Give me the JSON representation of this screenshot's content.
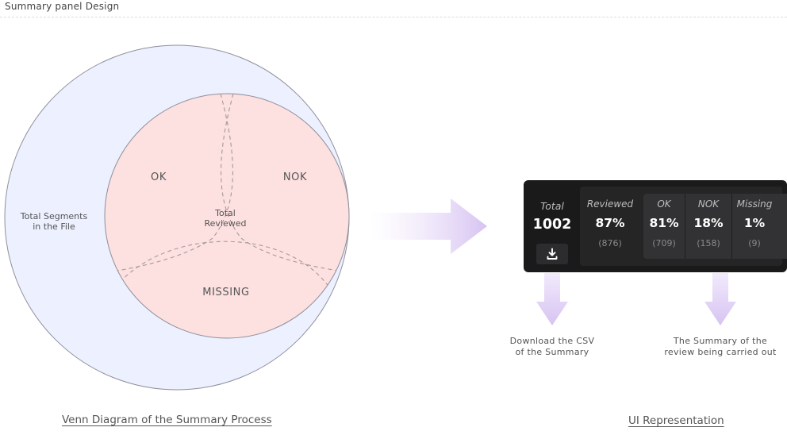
{
  "page_title": "Summary panel Design",
  "venn": {
    "outer_label": "Total Segments\nin the File",
    "ok_label": "OK",
    "nok_label": "NOK",
    "missing_label": "MISSING",
    "center_label": "Total\nReviewed",
    "caption": "Venn Diagram of the Summary Process",
    "colors": {
      "outer": "#ecf0ff",
      "inner": "#fde0e0",
      "outline": "#8f8f9a",
      "dashes": "#a59a9a"
    }
  },
  "panel": {
    "total": {
      "header": "Total",
      "value": "1002"
    },
    "reviewed": {
      "header": "Reviewed",
      "value": "87%",
      "count": "(876)"
    },
    "ok": {
      "header": "OK",
      "value": "81%",
      "count": "(709)"
    },
    "nok": {
      "header": "NOK",
      "value": "18%",
      "count": "(158)"
    },
    "missing": {
      "header": "Missing",
      "value": "1%",
      "count": "(9)"
    },
    "download_icon": "download-icon",
    "colors": {
      "background": "#1a1a1a",
      "text": "#ffffff",
      "muted": "#8a8a8a"
    }
  },
  "notes": {
    "download": "Download the CSV\nof the Summary",
    "summary": "The Summary of the\nreview being carried out"
  },
  "ui_caption": "UI Representation",
  "arrow_color": "#d7c3f2"
}
